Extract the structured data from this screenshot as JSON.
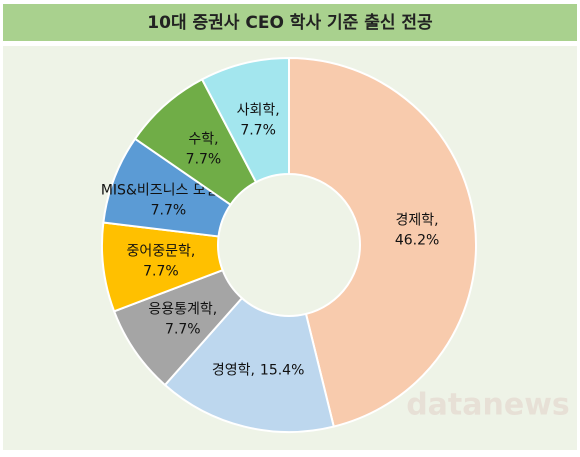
{
  "chart_data": {
    "type": "donut",
    "title": "10대 증권사 CEO 학사 기준 출신 전공",
    "categories": [
      "경제학",
      "경영학",
      "응용통계학",
      "중어중문학",
      "MIS&비즈니스 모델링",
      "수학",
      "사회학"
    ],
    "values": [
      46.2,
      15.4,
      7.7,
      7.7,
      7.7,
      7.7,
      7.7
    ],
    "value_labels": [
      "46.2%",
      "15.4%",
      "7.7%",
      "7.7%",
      "7.7%",
      "7.7%",
      "7.7%"
    ],
    "label_separator": ",",
    "colors": [
      "#f8cbad",
      "#bdd7ee",
      "#a5a5a5",
      "#ffc000",
      "#5b9bd5",
      "#70ad47",
      "#a3e6ee"
    ],
    "watermark": "datanews"
  }
}
